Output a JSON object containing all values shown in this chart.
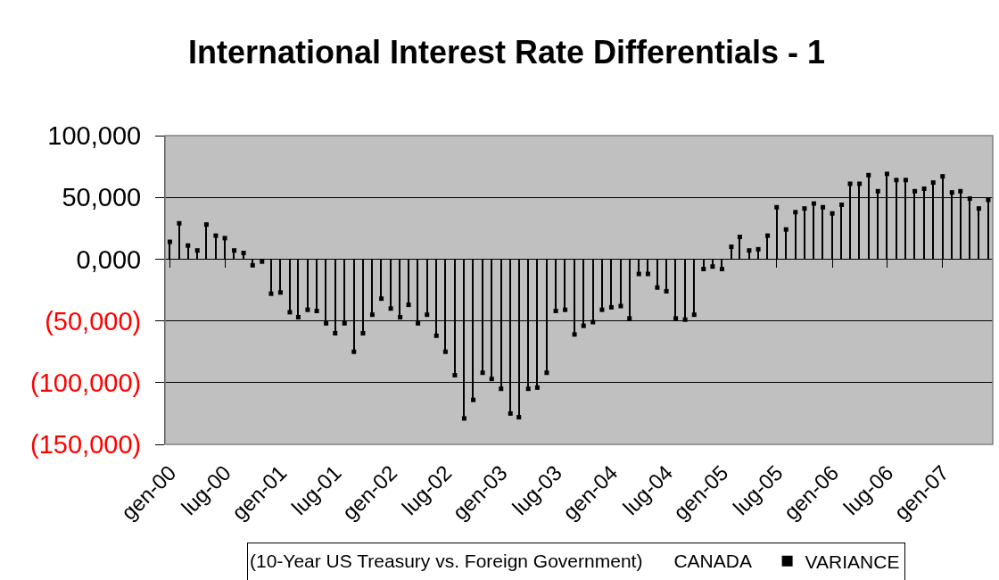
{
  "chart_data": {
    "type": "lollipop",
    "title": "International Interest Rate Differentials - 1",
    "legend_title": "(10-Year US Treasury vs. Foreign Government)      CANADA",
    "x": [
      "2000-01",
      "2000-02",
      "2000-03",
      "2000-04",
      "2000-05",
      "2000-06",
      "2000-07",
      "2000-08",
      "2000-09",
      "2000-10",
      "2000-11",
      "2000-12",
      "2001-01",
      "2001-02",
      "2001-03",
      "2001-04",
      "2001-05",
      "2001-06",
      "2001-07",
      "2001-08",
      "2001-09",
      "2001-10",
      "2001-11",
      "2001-12",
      "2002-01",
      "2002-02",
      "2002-03",
      "2002-04",
      "2002-05",
      "2002-06",
      "2002-07",
      "2002-08",
      "2002-09",
      "2002-10",
      "2002-11",
      "2002-12",
      "2003-01",
      "2003-02",
      "2003-03",
      "2003-04",
      "2003-05",
      "2003-06",
      "2003-07",
      "2003-08",
      "2003-09",
      "2003-10",
      "2003-11",
      "2003-12",
      "2004-01",
      "2004-02",
      "2004-03",
      "2004-04",
      "2004-05",
      "2004-06",
      "2004-07",
      "2004-08",
      "2004-09",
      "2004-10",
      "2004-11",
      "2004-12",
      "2005-01",
      "2005-02",
      "2005-03",
      "2005-04",
      "2005-05",
      "2005-06",
      "2005-07",
      "2005-08",
      "2005-09",
      "2005-10",
      "2005-11",
      "2005-12",
      "2006-01",
      "2006-02",
      "2006-03",
      "2006-04",
      "2006-05",
      "2006-06",
      "2006-07",
      "2006-08",
      "2006-09",
      "2006-10",
      "2006-11",
      "2006-12",
      "2007-01",
      "2007-02",
      "2007-03",
      "2007-04",
      "2007-05",
      "2007-06"
    ],
    "series": [
      {
        "name": "VARIANCE",
        "color": "#000000",
        "values": [
          14000,
          29000,
          11000,
          7000,
          28000,
          19000,
          17000,
          7000,
          5000,
          -5000,
          -2000,
          -28000,
          -27000,
          -43000,
          -47000,
          -41000,
          -42000,
          -52000,
          -60000,
          -52000,
          -75000,
          -60000,
          -45000,
          -32000,
          -40000,
          -47000,
          -37000,
          -52000,
          -45000,
          -62000,
          -75000,
          -94000,
          -129000,
          -114000,
          -92000,
          -97000,
          -105000,
          -125000,
          -128000,
          -105000,
          -104000,
          -92000,
          -42000,
          -41000,
          -61000,
          -54000,
          -51000,
          -41000,
          -39000,
          -38000,
          -48000,
          -12000,
          -12000,
          -23000,
          -26000,
          -48000,
          -49000,
          -45000,
          -8000,
          -6000,
          -8000,
          10000,
          18000,
          7000,
          8000,
          19000,
          42000,
          24000,
          38000,
          41000,
          45000,
          42000,
          37000,
          44000,
          61000,
          61000,
          68000,
          55000,
          69000,
          64000,
          64000,
          55000,
          57000,
          62000,
          67000,
          54000,
          55000,
          49000,
          41000,
          48000
        ]
      }
    ],
    "ylim": [
      -150000,
      100000
    ],
    "yticks": [
      {
        "value": 100000,
        "label": "100,000"
      },
      {
        "value": 50000,
        "label": "50,000"
      },
      {
        "value": 0,
        "label": "0,000"
      },
      {
        "value": -50000,
        "label": "(50,000)"
      },
      {
        "value": -100000,
        "label": "(100,000)"
      },
      {
        "value": -150000,
        "label": "(150,000)"
      }
    ],
    "xlim": [
      "1999-12-16",
      "2007-06-16"
    ],
    "xticks": [
      {
        "value": "2000-01",
        "label": "gen-00"
      },
      {
        "value": "2000-07",
        "label": "lug-00"
      },
      {
        "value": "2001-01",
        "label": "gen-01"
      },
      {
        "value": "2001-07",
        "label": "lug-01"
      },
      {
        "value": "2002-01",
        "label": "gen-02"
      },
      {
        "value": "2002-07",
        "label": "lug-02"
      },
      {
        "value": "2003-01",
        "label": "gen-03"
      },
      {
        "value": "2003-07",
        "label": "lug-03"
      },
      {
        "value": "2004-01",
        "label": "gen-04"
      },
      {
        "value": "2004-07",
        "label": "lug-04"
      },
      {
        "value": "2005-01",
        "label": "gen-05"
      },
      {
        "value": "2005-07",
        "label": "lug-05"
      },
      {
        "value": "2006-01",
        "label": "gen-06"
      },
      {
        "value": "2006-07",
        "label": "lug-06"
      },
      {
        "value": "2007-01",
        "label": "gen-07"
      }
    ],
    "grid": "y",
    "legend": "bottom",
    "marker": "square"
  }
}
